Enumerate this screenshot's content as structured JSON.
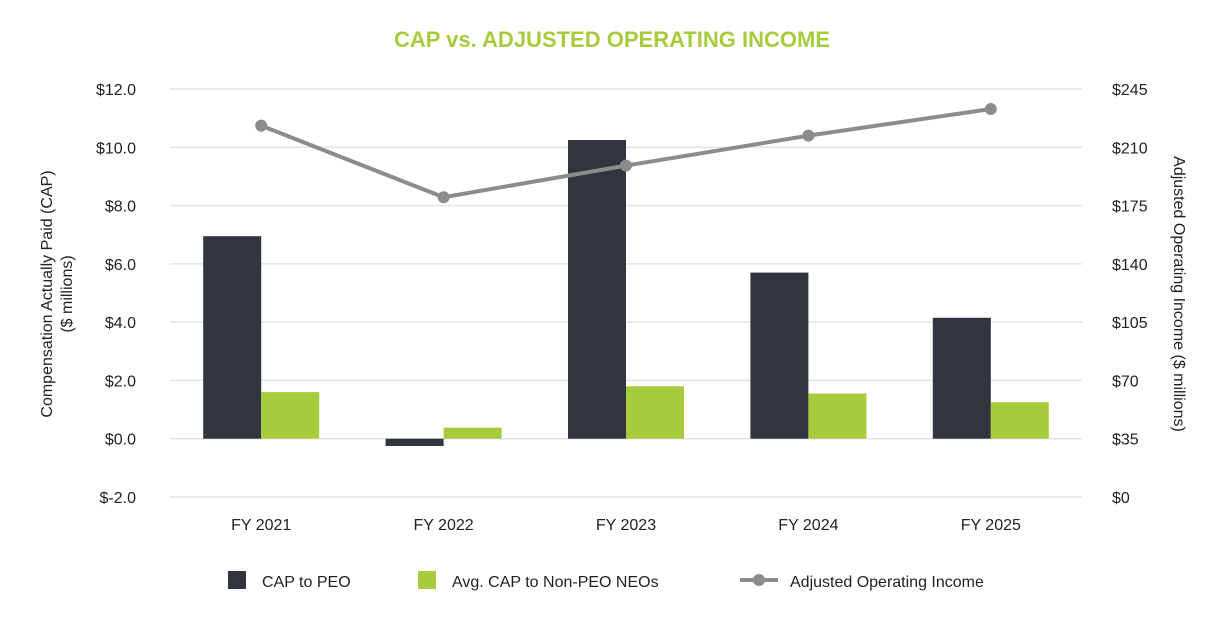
{
  "chart_data": {
    "type": "bar",
    "title": "CAP vs. ADJUSTED OPERATING INCOME",
    "categories": [
      "FY 2021",
      "FY 2022",
      "FY 2023",
      "FY 2024",
      "FY 2025"
    ],
    "ylabel": [
      "Compensation Actually Paid (CAP)",
      "($ millions)"
    ],
    "y2label": "Adjusted Operating Income ($ millions)",
    "ylim": [
      -2,
      12
    ],
    "y2lim": [
      0,
      245
    ],
    "y_ticks": [
      {
        "value": 12,
        "label": "$12.0"
      },
      {
        "value": 10,
        "label": "$10.0"
      },
      {
        "value": 8,
        "label": "$8.0"
      },
      {
        "value": 6,
        "label": "$6.0"
      },
      {
        "value": 4,
        "label": "$4.0"
      },
      {
        "value": 2,
        "label": "$2.0"
      },
      {
        "value": 0,
        "label": "$0.0"
      },
      {
        "value": -2,
        "label": "$-2.0"
      }
    ],
    "y2_ticks": [
      {
        "value": 245,
        "label": "$245"
      },
      {
        "value": 210,
        "label": "$210"
      },
      {
        "value": 175,
        "label": "$175"
      },
      {
        "value": 140,
        "label": "$140"
      },
      {
        "value": 105,
        "label": "$105"
      },
      {
        "value": 70,
        "label": "$70"
      },
      {
        "value": 35,
        "label": "$35"
      },
      {
        "value": 0,
        "label": "$0"
      }
    ],
    "series": [
      {
        "name": "CAP to PEO",
        "type": "bar",
        "axis": "left",
        "color": "#32343e",
        "values": [
          6.95,
          -0.25,
          10.25,
          5.7,
          4.15
        ]
      },
      {
        "name": "Avg. CAP to Non-PEO NEOs",
        "type": "bar",
        "axis": "left",
        "color": "#a6cc3e",
        "values": [
          1.6,
          0.38,
          1.8,
          1.55,
          1.25
        ]
      },
      {
        "name": "Adjusted Operating Income",
        "type": "line",
        "axis": "right",
        "color": "#8c8c8c",
        "values": [
          223,
          180,
          199,
          217,
          233
        ]
      }
    ],
    "legend_position": "bottom",
    "grid": true
  }
}
